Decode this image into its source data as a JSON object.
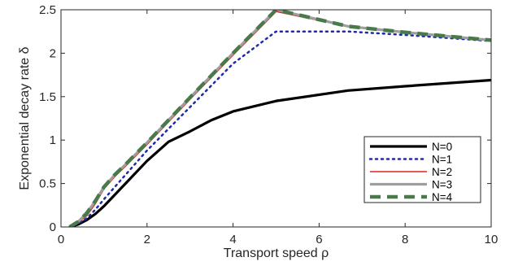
{
  "chart_data": {
    "type": "line",
    "xlabel": "Transport speed ρ",
    "ylabel": "Exponential decay rate δ",
    "xlim": [
      0,
      10
    ],
    "ylim": [
      0,
      2.5
    ],
    "xticks": [
      0,
      2,
      4,
      6,
      8,
      10
    ],
    "yticks": [
      0,
      0.5,
      1,
      1.5,
      2,
      2.5
    ],
    "xtick_labels": [
      "0",
      "2",
      "4",
      "6",
      "8",
      "10"
    ],
    "ytick_labels": [
      "0",
      "0.5",
      "1",
      "1.5",
      "2",
      "2.5"
    ],
    "grid": false,
    "legend_position": "bottom-right",
    "series": [
      {
        "name": "N=0",
        "color": "#000000",
        "style": "solid",
        "x": [
          0.2,
          0.4,
          0.6,
          0.8,
          1.0,
          1.25,
          1.5,
          2.0,
          2.5,
          3.0,
          3.5,
          4.0,
          5.0,
          6.67,
          8.0,
          10.0
        ],
        "y": [
          0.0,
          0.03,
          0.08,
          0.15,
          0.24,
          0.37,
          0.5,
          0.76,
          0.98,
          1.1,
          1.23,
          1.33,
          1.45,
          1.57,
          1.62,
          1.69
        ]
      },
      {
        "name": "N=1",
        "color": "#1f2aa8",
        "style": "dotted",
        "x": [
          0.2,
          0.4,
          0.6,
          0.8,
          1.0,
          1.25,
          1.5,
          2.0,
          3.0,
          4.0,
          5.0,
          6.67,
          8.0,
          10.0
        ],
        "y": [
          0.0,
          0.04,
          0.1,
          0.2,
          0.32,
          0.46,
          0.6,
          0.88,
          1.38,
          1.88,
          2.25,
          2.25,
          2.21,
          2.14
        ]
      },
      {
        "name": "N=2",
        "color": "#e0201b",
        "style": "solid",
        "x": [
          0.2,
          0.4,
          0.6,
          0.8,
          1.0,
          1.25,
          1.5,
          2.0,
          3.0,
          4.0,
          5.0,
          6.67,
          8.0,
          10.0
        ],
        "y": [
          0.0,
          0.05,
          0.13,
          0.27,
          0.44,
          0.58,
          0.7,
          0.95,
          1.47,
          1.98,
          2.48,
          2.31,
          2.24,
          2.15
        ]
      },
      {
        "name": "N=3",
        "color": "#9e9e9e",
        "style": "solid",
        "x": [
          0.2,
          0.4,
          0.6,
          0.8,
          1.0,
          1.25,
          1.5,
          2.0,
          3.0,
          4.0,
          5.0,
          6.67,
          8.0,
          10.0
        ],
        "y": [
          0.0,
          0.06,
          0.16,
          0.3,
          0.46,
          0.6,
          0.72,
          0.97,
          1.49,
          2.0,
          2.5,
          2.31,
          2.24,
          2.15
        ]
      },
      {
        "name": "N=4",
        "color": "#4a7a4a",
        "style": "dashed",
        "x": [
          0.2,
          0.4,
          0.6,
          0.8,
          1.0,
          1.25,
          1.5,
          2.0,
          3.0,
          4.0,
          5.0,
          6.67,
          8.0,
          10.0
        ],
        "y": [
          0.0,
          0.06,
          0.16,
          0.3,
          0.46,
          0.6,
          0.72,
          0.97,
          1.49,
          2.0,
          2.5,
          2.31,
          2.24,
          2.15
        ]
      }
    ]
  }
}
